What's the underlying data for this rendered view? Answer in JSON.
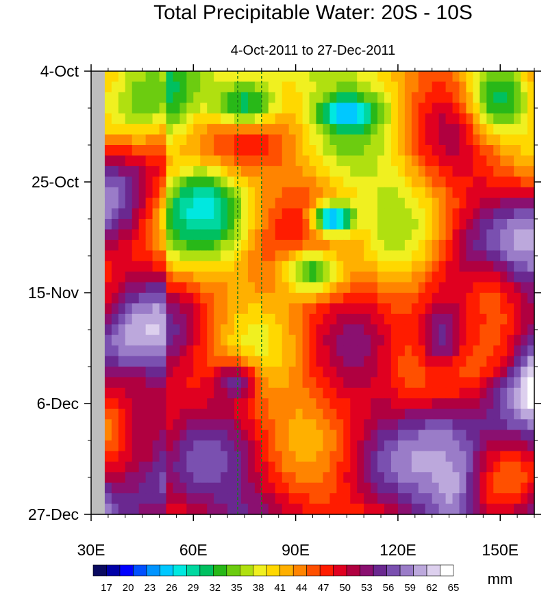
{
  "chart_data": {
    "type": "heatmap",
    "title": "Total Precipitable Water: 20S - 10S",
    "subtitle": "4-Oct-2011 to 27-Dec-2011",
    "x_axis": {
      "range": [
        30,
        160
      ],
      "ticks": [
        {
          "value": 30,
          "label": "30E"
        },
        {
          "value": 60,
          "label": "60E"
        },
        {
          "value": 90,
          "label": "90E"
        },
        {
          "value": 120,
          "label": "120E"
        },
        {
          "value": 150,
          "label": "150E"
        }
      ]
    },
    "y_axis": {
      "range_days": [
        0,
        84
      ],
      "ticks": [
        {
          "value": 0,
          "label": "4-Oct"
        },
        {
          "value": 21,
          "label": "25-Oct"
        },
        {
          "value": 42,
          "label": "15-Nov"
        },
        {
          "value": 63,
          "label": "6-Dec"
        },
        {
          "value": 84,
          "label": "27-Dec"
        }
      ]
    },
    "reference_lines_x": [
      73,
      80
    ],
    "masked_region_x": [
      30,
      34
    ],
    "colorbar": {
      "unit": "mm",
      "levels": [
        17,
        20,
        23,
        26,
        29,
        32,
        35,
        38,
        41,
        44,
        47,
        50,
        53,
        56,
        59,
        62,
        65
      ],
      "colors": [
        "#0a0a60",
        "#0000a8",
        "#0000ff",
        "#0050ff",
        "#0094ff",
        "#00c8ff",
        "#00e8e0",
        "#00d8a0",
        "#00c060",
        "#28b818",
        "#6ccc10",
        "#b0e010",
        "#f0f020",
        "#ffd800",
        "#ffb000",
        "#ff8400",
        "#ff5000",
        "#ff1c00",
        "#e00020",
        "#b00040",
        "#8a1070",
        "#6a2890",
        "#7a50b0",
        "#9a7cc8",
        "#bca8dc",
        "#ddd0ee",
        "#ffffff"
      ]
    },
    "features": [
      {
        "lon": 30,
        "day": 3,
        "value": 40,
        "sx": 10,
        "sy": 8
      },
      {
        "lon": 75,
        "day": 6,
        "value": 31,
        "sx": 12,
        "sy": 5
      },
      {
        "lon": 105,
        "day": 8,
        "value": 24,
        "sx": 8,
        "sy": 3
      },
      {
        "lon": 62,
        "day": 26,
        "value": 27,
        "sx": 9,
        "sy": 6
      },
      {
        "lon": 101,
        "day": 28,
        "value": 22,
        "sx": 6,
        "sy": 3
      },
      {
        "lon": 95,
        "day": 38,
        "value": 33,
        "sx": 10,
        "sy": 5
      },
      {
        "lon": 150,
        "day": 5,
        "value": 31,
        "sx": 10,
        "sy": 8
      },
      {
        "lon": 147,
        "day": 45,
        "value": 47,
        "sx": 10,
        "sy": 10
      },
      {
        "lon": 72,
        "day": 59,
        "value": 57,
        "sx": 7,
        "sy": 4
      },
      {
        "lon": 135,
        "day": 78,
        "value": 63,
        "sx": 8,
        "sy": 10
      },
      {
        "lon": 133,
        "day": 50,
        "value": 57,
        "sx": 8,
        "sy": 8
      },
      {
        "lon": 45,
        "day": 66,
        "value": 53,
        "sx": 8,
        "sy": 10
      }
    ]
  }
}
